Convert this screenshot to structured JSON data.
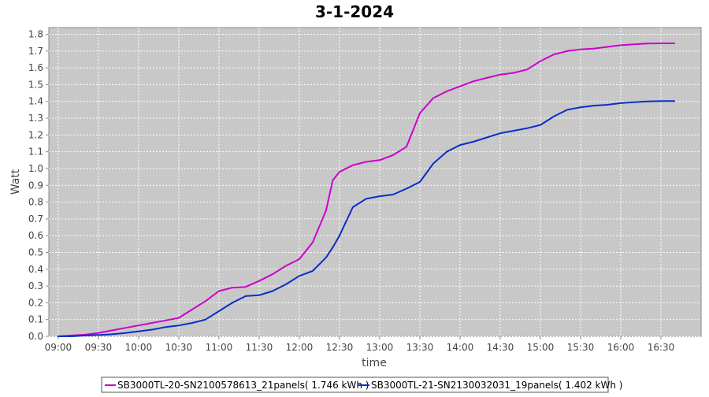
{
  "chart_data": {
    "type": "line",
    "title": "3-1-2024",
    "xlabel": "time",
    "ylabel": "Watt",
    "x_ticks": [
      "09:00",
      "09:30",
      "10:00",
      "10:30",
      "11:00",
      "11:30",
      "12:00",
      "12:30",
      "13:00",
      "13:30",
      "14:00",
      "14:30",
      "15:00",
      "15:30",
      "16:00",
      "16:30"
    ],
    "y_ticks": [
      0.0,
      0.1,
      0.2,
      0.3,
      0.4,
      0.5,
      0.6,
      0.7,
      0.8,
      0.9,
      1.0,
      1.1,
      1.2,
      1.3,
      1.4,
      1.5,
      1.6,
      1.7,
      1.8
    ],
    "y_tick_labels": [
      "0.0",
      "0.1",
      "0.2",
      "0.3",
      "0.4",
      "0.5",
      "0.6",
      "0.7",
      "0.8",
      "0.9",
      "1.0",
      "1.1",
      "1.2",
      "1.3",
      "1.4",
      "1.5",
      "1.6",
      "1.7",
      "1.8"
    ],
    "xlim": [
      "08:53",
      "17:00"
    ],
    "ylim": [
      0,
      1.84
    ],
    "grid": true,
    "legend_position": "bottom",
    "background_color": "#c8c8c8",
    "x": [
      "09:00",
      "09:10",
      "09:20",
      "09:30",
      "09:40",
      "09:50",
      "10:00",
      "10:10",
      "10:20",
      "10:30",
      "10:40",
      "10:50",
      "11:00",
      "11:10",
      "11:20",
      "11:30",
      "11:40",
      "11:50",
      "12:00",
      "12:10",
      "12:20",
      "12:25",
      "12:30",
      "12:40",
      "12:50",
      "13:00",
      "13:10",
      "13:20",
      "13:30",
      "13:40",
      "13:50",
      "14:00",
      "14:10",
      "14:20",
      "14:30",
      "14:40",
      "14:50",
      "15:00",
      "15:10",
      "15:20",
      "15:30",
      "15:40",
      "15:50",
      "16:00",
      "16:10",
      "16:20",
      "16:30",
      "16:40"
    ],
    "series": [
      {
        "name": "SB3000TL-20-SN2100578613_21panels( 1.746 kWh )",
        "color": "#cc00cc",
        "values": [
          0.0,
          0.005,
          0.01,
          0.02,
          0.035,
          0.05,
          0.065,
          0.08,
          0.095,
          0.11,
          0.16,
          0.21,
          0.27,
          0.29,
          0.295,
          0.33,
          0.37,
          0.42,
          0.46,
          0.56,
          0.75,
          0.93,
          0.98,
          1.02,
          1.04,
          1.05,
          1.08,
          1.13,
          1.33,
          1.42,
          1.46,
          1.49,
          1.52,
          1.54,
          1.56,
          1.57,
          1.59,
          1.64,
          1.68,
          1.7,
          1.71,
          1.715,
          1.725,
          1.735,
          1.74,
          1.745,
          1.746,
          1.746
        ]
      },
      {
        "name": "SB3000TL-21-SN2130032031_19panels( 1.402 kWh )",
        "color": "#0a2dc8",
        "values": [
          0.0,
          0.0,
          0.005,
          0.008,
          0.012,
          0.02,
          0.03,
          0.04,
          0.055,
          0.065,
          0.08,
          0.1,
          0.15,
          0.2,
          0.24,
          0.245,
          0.27,
          0.31,
          0.36,
          0.39,
          0.47,
          0.53,
          0.6,
          0.77,
          0.82,
          0.835,
          0.845,
          0.88,
          0.92,
          1.03,
          1.1,
          1.14,
          1.16,
          1.185,
          1.21,
          1.225,
          1.24,
          1.26,
          1.31,
          1.35,
          1.365,
          1.375,
          1.38,
          1.39,
          1.395,
          1.4,
          1.402,
          1.402
        ]
      }
    ]
  }
}
